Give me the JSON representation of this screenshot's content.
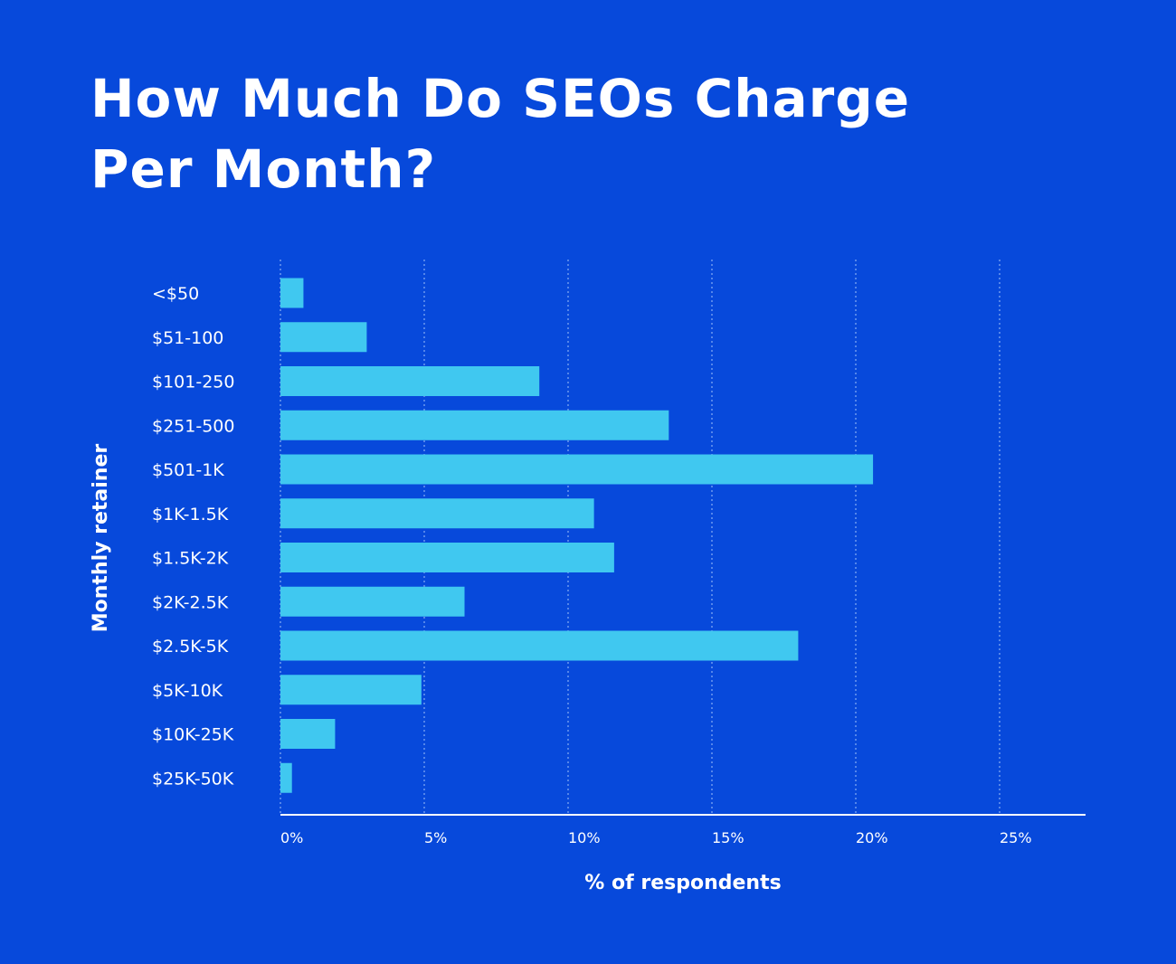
{
  "title_lines": [
    "How Much Do SEOs Charge",
    "Per Month?"
  ],
  "colors": {
    "background": "#0749db",
    "bar": "#40c8f0",
    "text": "#ffffff",
    "grid": "#7ea6f2"
  },
  "chart_data": {
    "type": "bar",
    "orientation": "horizontal",
    "title": "How Much Do SEOs Charge Per Month?",
    "xlabel": "% of respondents",
    "ylabel": "Monthly retainer",
    "categories": [
      "<$50",
      "$51-100",
      "$101-250",
      "$251-500",
      "$501-1K",
      "$1K-1.5K",
      "$1.5K-2K",
      "$2K-2.5K",
      "$2.5K-5K",
      "$5K-10K",
      "$10K-25K",
      "$25K-50K"
    ],
    "values": [
      0.8,
      3.0,
      9.0,
      13.5,
      20.6,
      10.9,
      11.6,
      6.4,
      18.0,
      4.9,
      1.9,
      0.4
    ],
    "xticks": [
      "0%",
      "5%",
      "10%",
      "15%",
      "20%",
      "25%"
    ],
    "xtick_values": [
      0,
      5,
      10,
      15,
      20,
      25
    ],
    "xlim": [
      0,
      28
    ],
    "grid": "vertical dotted"
  }
}
